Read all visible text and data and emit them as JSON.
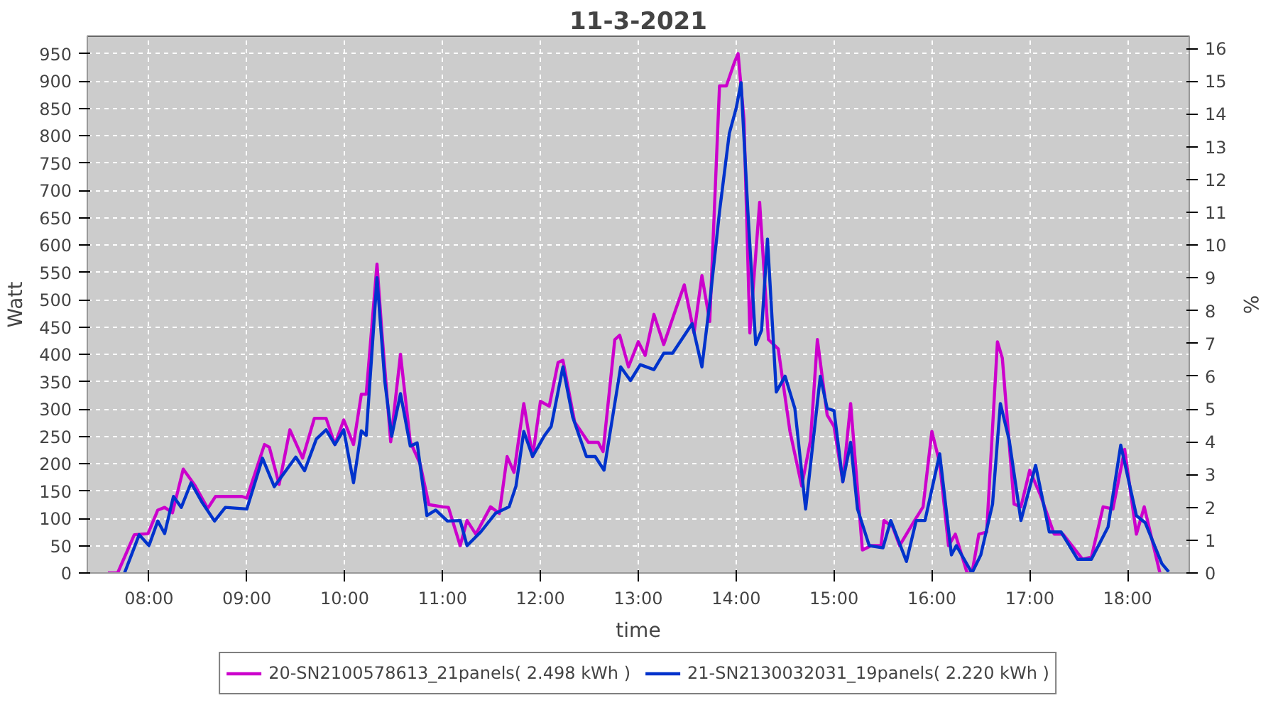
{
  "chart_data": {
    "type": "line",
    "title": "11-3-2021",
    "xlabel": "time",
    "ylabel": "Watt",
    "y2label": "%",
    "xlim": [
      7.37,
      18.63
    ],
    "xticks": [
      {
        "value": 8,
        "label": "08:00"
      },
      {
        "value": 9,
        "label": "09:00"
      },
      {
        "value": 10,
        "label": "10:00"
      },
      {
        "value": 11,
        "label": "11:00"
      },
      {
        "value": 12,
        "label": "12:00"
      },
      {
        "value": 13,
        "label": "13:00"
      },
      {
        "value": 14,
        "label": "14:00"
      },
      {
        "value": 15,
        "label": "15:00"
      },
      {
        "value": 16,
        "label": "16:00"
      },
      {
        "value": 17,
        "label": "17:00"
      },
      {
        "value": 18,
        "label": "18:00"
      }
    ],
    "ylim": [
      0,
      982
    ],
    "yticks": [
      0,
      50,
      100,
      150,
      200,
      250,
      300,
      350,
      400,
      450,
      500,
      550,
      600,
      650,
      700,
      750,
      800,
      850,
      900,
      950
    ],
    "y2lim": [
      0,
      16.37
    ],
    "y2ticks": [
      0,
      1,
      2,
      3,
      4,
      5,
      6,
      7,
      8,
      9,
      10,
      11,
      12,
      13,
      14,
      15,
      16
    ],
    "grid": true,
    "legend": "bottom",
    "line_style": "solid",
    "marker": "none",
    "series": [
      {
        "name": "20-SN2100578613_21panels( 2.498 kWh )",
        "color": "#cc00cc",
        "x": [
          7.58,
          7.68,
          7.85,
          7.99,
          8.09,
          8.16,
          8.24,
          8.35,
          8.47,
          8.6,
          8.68,
          8.8,
          8.95,
          9.0,
          9.18,
          9.23,
          9.33,
          9.44,
          9.57,
          9.69,
          9.81,
          9.9,
          9.99,
          10.09,
          10.17,
          10.22,
          10.33,
          10.38,
          10.47,
          10.57,
          10.67,
          10.77,
          10.86,
          11.0,
          11.06,
          11.18,
          11.25,
          11.34,
          11.49,
          11.58,
          11.66,
          11.73,
          11.83,
          11.92,
          12.0,
          12.09,
          12.18,
          12.23,
          12.35,
          12.49,
          12.59,
          12.64,
          12.76,
          12.81,
          12.9,
          13.0,
          13.07,
          13.16,
          13.26,
          13.38,
          13.47,
          13.57,
          13.65,
          13.73,
          13.83,
          13.9,
          13.98,
          14.02,
          14.08,
          14.14,
          14.24,
          14.33,
          14.43,
          14.55,
          14.67,
          14.76,
          14.83,
          14.93,
          15.0,
          15.09,
          15.17,
          15.29,
          15.38,
          15.48,
          15.51,
          15.6,
          15.67,
          15.81,
          15.91,
          16.0,
          16.08,
          16.17,
          16.24,
          16.36,
          16.41,
          16.48,
          16.56,
          16.67,
          16.72,
          16.84,
          16.91,
          17.0,
          17.11,
          17.25,
          17.34,
          17.54,
          17.63,
          17.75,
          17.85,
          17.97,
          18.09,
          18.17,
          18.33
        ],
        "values": [
          0,
          0,
          70,
          72,
          115,
          120,
          110,
          190,
          160,
          118,
          140,
          140,
          140,
          137,
          235,
          230,
          162,
          262,
          210,
          283,
          283,
          235,
          280,
          235,
          327,
          327,
          565,
          440,
          240,
          400,
          240,
          200,
          125,
          121,
          120,
          50,
          96,
          71,
          121,
          109,
          213,
          184,
          310,
          213,
          314,
          305,
          385,
          389,
          276,
          239,
          239,
          222,
          427,
          435,
          377,
          423,
          398,
          473,
          418,
          481,
          527,
          439,
          544,
          460,
          891,
          891,
          933,
          950,
          829,
          439,
          678,
          427,
          410,
          259,
          159,
          243,
          427,
          289,
          268,
          167,
          310,
          42,
          50,
          50,
          96,
          84,
          50,
          92,
          121,
          259,
          201,
          50,
          71,
          0,
          0,
          71,
          75,
          423,
          393,
          126,
          121,
          188,
          142,
          71,
          71,
          25,
          29,
          121,
          117,
          226,
          71,
          121,
          0
        ]
      },
      {
        "name": "21-SN2130032031_19panels( 2.220 kWh )",
        "color": "#0033cc",
        "x": [
          7.75,
          7.9,
          8.0,
          8.09,
          8.16,
          8.25,
          8.33,
          8.43,
          8.54,
          8.67,
          8.78,
          9.0,
          9.16,
          9.28,
          9.5,
          9.59,
          9.71,
          9.81,
          9.9,
          9.99,
          10.09,
          10.17,
          10.22,
          10.33,
          10.41,
          10.48,
          10.57,
          10.67,
          10.74,
          10.84,
          10.93,
          11.05,
          11.18,
          11.25,
          11.39,
          11.54,
          11.68,
          11.75,
          11.83,
          11.92,
          12.04,
          12.11,
          12.23,
          12.33,
          12.47,
          12.56,
          12.65,
          12.82,
          12.92,
          13.02,
          13.16,
          13.26,
          13.35,
          13.55,
          13.65,
          13.73,
          13.83,
          13.93,
          14.0,
          14.05,
          14.12,
          14.2,
          14.26,
          14.32,
          14.41,
          14.5,
          14.6,
          14.71,
          14.86,
          14.93,
          15.0,
          15.09,
          15.17,
          15.24,
          15.36,
          15.5,
          15.58,
          15.67,
          15.74,
          15.84,
          15.93,
          16.08,
          16.2,
          16.25,
          16.41,
          16.5,
          16.62,
          16.7,
          16.79,
          16.91,
          17.06,
          17.2,
          17.32,
          17.49,
          17.63,
          17.8,
          17.93,
          18.09,
          18.18,
          18.35,
          18.42
        ],
        "values": [
          0,
          70,
          50,
          95,
          72,
          140,
          120,
          165,
          130,
          95,
          120,
          117,
          210,
          158,
          212,
          187,
          245,
          262,
          235,
          262,
          165,
          260,
          252,
          540,
          350,
          250,
          328,
          232,
          238,
          105,
          115,
          95,
          96,
          50,
          75,
          109,
          121,
          159,
          259,
          213,
          251,
          268,
          377,
          285,
          213,
          213,
          188,
          377,
          352,
          381,
          372,
          402,
          402,
          456,
          377,
          494,
          661,
          804,
          850,
          897,
          661,
          418,
          444,
          611,
          331,
          360,
          301,
          117,
          360,
          301,
          297,
          167,
          239,
          117,
          50,
          46,
          96,
          54,
          21,
          96,
          96,
          218,
          33,
          50,
          0,
          33,
          126,
          310,
          243,
          96,
          197,
          75,
          75,
          25,
          25,
          84,
          234,
          105,
          92,
          17,
          2
        ]
      }
    ]
  }
}
